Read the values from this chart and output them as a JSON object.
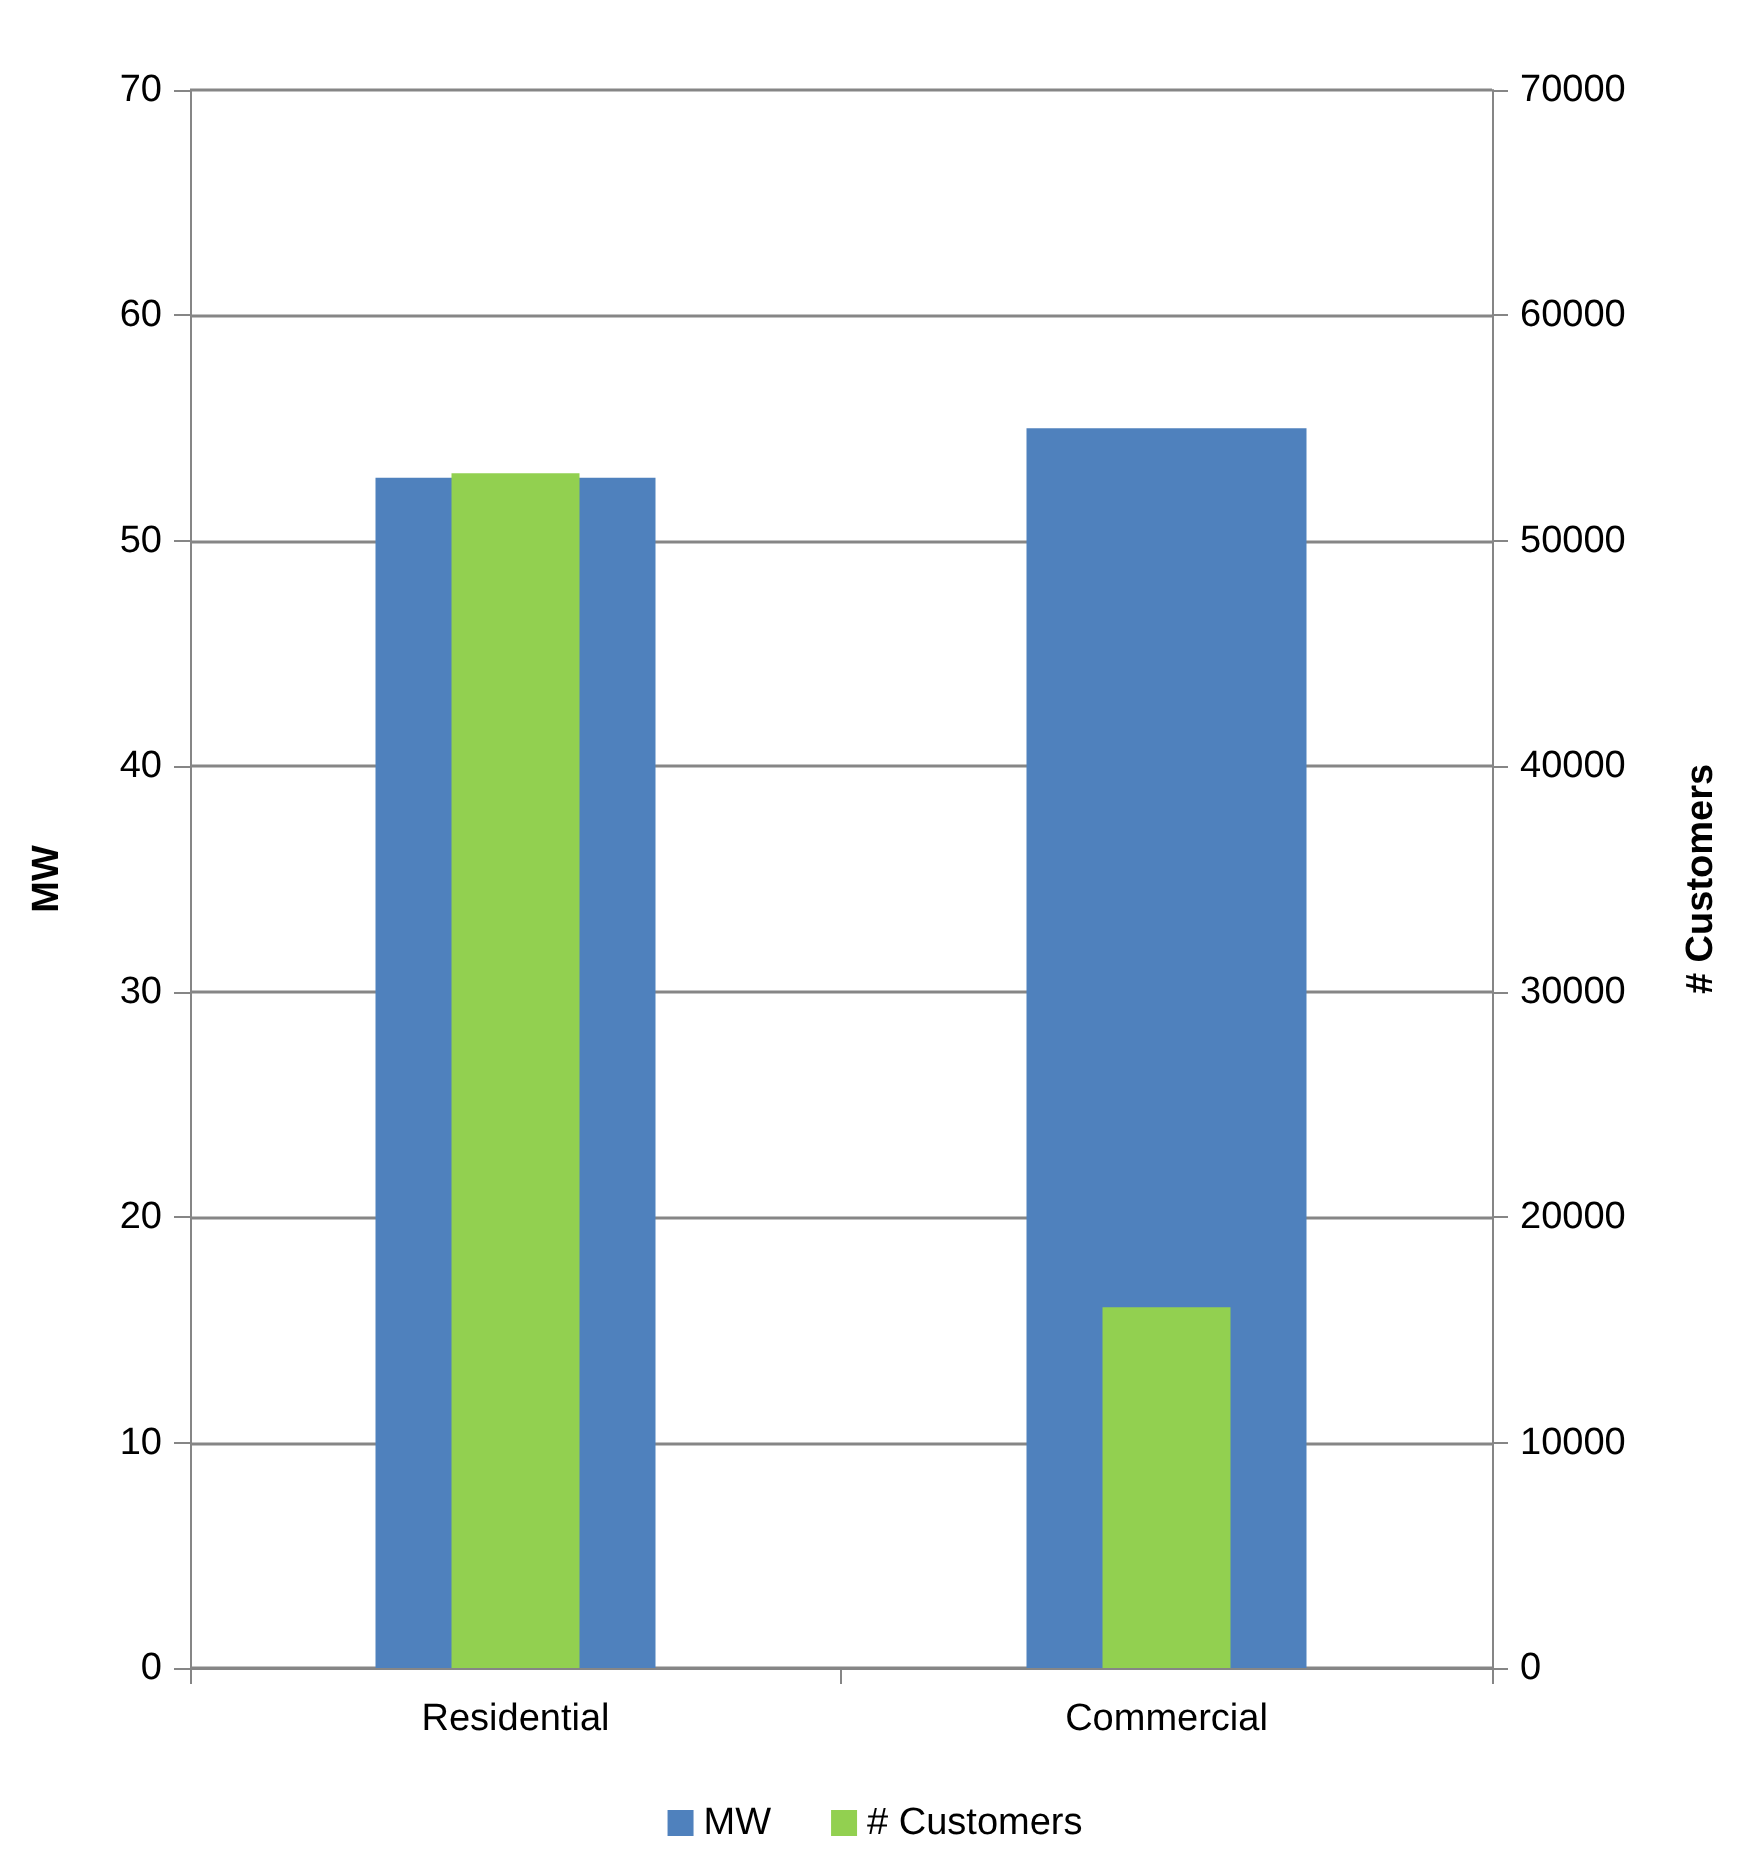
{
  "chart_data": {
    "type": "bar",
    "categories": [
      "Residential",
      "Commercial"
    ],
    "ylabel": "MW",
    "y2label": "# Customers",
    "series": [
      {
        "name": "MW",
        "color": "#4f81bd",
        "values": [
          52.8,
          55.0
        ]
      },
      {
        "name": "# Customers",
        "color": "#92d050",
        "values": [
          53000,
          16000
        ],
        "axis": "y2"
      }
    ],
    "ylim": [
      0,
      70
    ],
    "yticks": [
      0,
      10,
      20,
      30,
      40,
      50,
      60,
      70
    ],
    "y2lim": [
      0,
      70000
    ],
    "y2ticks": [
      0,
      10000,
      20000,
      30000,
      40000,
      50000,
      60000,
      70000
    ],
    "grid": "y",
    "legend": "bottom"
  }
}
